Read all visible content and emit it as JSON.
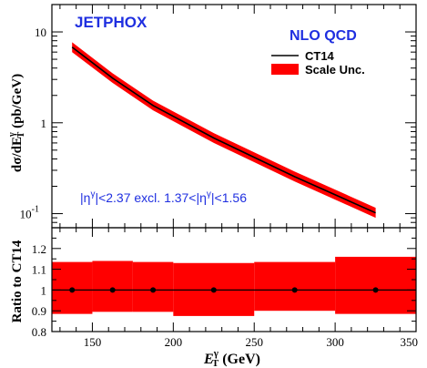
{
  "chart_data": [
    {
      "type": "line",
      "panel": "main",
      "tool_label": "JETPHOX",
      "legend_title": "NLO QCD",
      "legend": [
        "CT14",
        "Scale Unc."
      ],
      "annotation": {
        "pre": "|η",
        "sup1": "γ",
        "mid": "|<2.37 excl. 1.37<|η",
        "sup2": "γ",
        "post": "|<1.56"
      },
      "ylabel": {
        "pre": "dσ/dE",
        "sup": "γ",
        "sub": "T",
        "post": " (pb/GeV)"
      },
      "yscale": "log",
      "ylim": [
        0.07,
        20
      ],
      "xlim": [
        125,
        350
      ],
      "y_ticks": [
        {
          "value": 0.1,
          "base": "10",
          "exp": "-1"
        },
        {
          "value": 1,
          "base": "1",
          "exp": ""
        },
        {
          "value": 10,
          "base": "10",
          "exp": ""
        }
      ],
      "colors": {
        "central": "#000000",
        "band": "#ff0000",
        "label": "#1f2fe0"
      },
      "series": [
        {
          "name": "CT14",
          "x": [
            137.5,
            162.5,
            187.5,
            225,
            275,
            325
          ],
          "y": [
            6.8,
            3.1,
            1.55,
            0.68,
            0.255,
            0.102
          ]
        },
        {
          "name": "Scale Unc.",
          "x": [
            137.5,
            162.5,
            187.5,
            225,
            275,
            325
          ],
          "low": [
            6.0,
            2.75,
            1.37,
            0.6,
            0.226,
            0.09
          ],
          "high": [
            7.7,
            3.5,
            1.75,
            0.77,
            0.29,
            0.116
          ]
        }
      ]
    },
    {
      "type": "bar",
      "panel": "ratio",
      "ylabel": "Ratio to CT14",
      "xlabel": {
        "base": "E",
        "sup": "γ",
        "sub": "T",
        "post": " (GeV)"
      },
      "ylim": [
        0.8,
        1.3
      ],
      "xlim": [
        125,
        350
      ],
      "y_ticks": [
        "0.8",
        "0.9",
        "1",
        "1.1",
        "1.2"
      ],
      "x_ticks": [
        "150",
        "200",
        "250",
        "300",
        "350"
      ],
      "bins": [
        {
          "x_low": 125,
          "x_high": 150,
          "center": 137.5,
          "ratio": 1.0,
          "low": 0.885,
          "high": 1.135
        },
        {
          "x_low": 150,
          "x_high": 175,
          "center": 162.5,
          "ratio": 1.0,
          "low": 0.895,
          "high": 1.14
        },
        {
          "x_low": 175,
          "x_high": 200,
          "center": 187.5,
          "ratio": 1.0,
          "low": 0.895,
          "high": 1.135
        },
        {
          "x_low": 200,
          "x_high": 250,
          "center": 225,
          "ratio": 1.0,
          "low": 0.875,
          "high": 1.13
        },
        {
          "x_low": 250,
          "x_high": 300,
          "center": 275,
          "ratio": 1.0,
          "low": 0.9,
          "high": 1.135
        },
        {
          "x_low": 300,
          "x_high": 350,
          "center": 325,
          "ratio": 1.0,
          "low": 0.885,
          "high": 1.16
        }
      ]
    }
  ]
}
